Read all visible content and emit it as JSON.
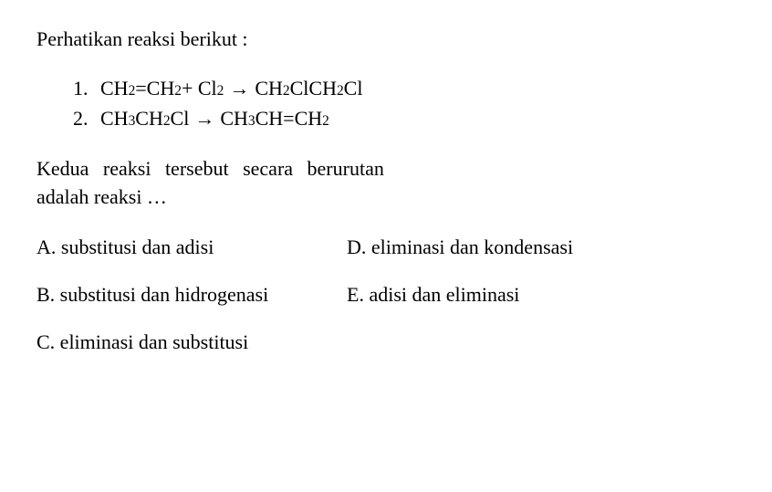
{
  "intro": "Perhatikan reaksi berikut :",
  "reactions": [
    {
      "num": "1.",
      "parts": [
        {
          "t": "CH",
          "sub": "2"
        },
        {
          "t": "=CH",
          "sub": "2"
        },
        {
          "t": " + Cl",
          "sub": "2"
        },
        {
          "t": " ",
          "arrow": true
        },
        {
          "t": " CH",
          "sub": "2"
        },
        {
          "t": "ClCH",
          "sub": "2"
        },
        {
          "t": "Cl"
        }
      ]
    },
    {
      "num": "2.",
      "parts": [
        {
          "t": "CH",
          "sub": "3"
        },
        {
          "t": "CH",
          "sub": "2"
        },
        {
          "t": "Cl "
        },
        {
          "t": " ",
          "arrow": true
        },
        {
          "t": " CH",
          "sub": "3"
        },
        {
          "t": "CH=CH",
          "sub": "2"
        }
      ]
    }
  ],
  "question_line1": "Kedua reaksi tersebut secara berurutan",
  "question_line2": "adalah reaksi …",
  "options": {
    "A": "A. substitusi dan adisi",
    "B": "B. substitusi dan hidrogenasi",
    "C": "C. eliminasi dan substitusi",
    "D": "D. eliminasi dan kondensasi",
    "E": "E. adisi dan eliminasi"
  },
  "arrow_glyph": "→",
  "colors": {
    "text": "#000000",
    "background": "#ffffff"
  },
  "font": {
    "family": "Times New Roman",
    "size_pt": 16
  }
}
